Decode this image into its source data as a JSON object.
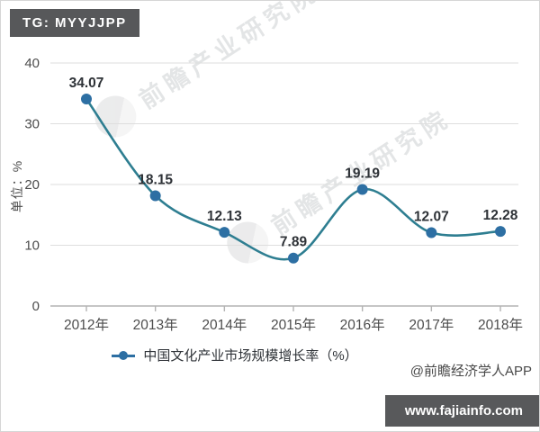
{
  "header": {
    "tag_badge": "TG: MYYJJPP"
  },
  "watermarks": [
    {
      "text": "前瞻产业研究院"
    },
    {
      "text": "前瞻产业研究院"
    }
  ],
  "chart_data": {
    "type": "line",
    "title": "",
    "categories": [
      "2012年",
      "2013年",
      "2014年",
      "2015年",
      "2016年",
      "2017年",
      "2018年"
    ],
    "series": [
      {
        "name": "中国文化产业市场规模增长率（%）",
        "values": [
          34.07,
          18.15,
          12.13,
          7.89,
          19.19,
          12.07,
          12.28
        ]
      }
    ],
    "xlabel": "",
    "ylabel": "单位：%",
    "ylim": [
      0,
      40
    ],
    "yticks": [
      0,
      10,
      20,
      30,
      40
    ],
    "grid": true,
    "legend_position": "bottom",
    "line_color": "#2e7e91",
    "marker_color": "#2d6fa3",
    "data_label_color": "#2e3237",
    "axis_color": "#b3b3b3",
    "grid_color": "#dedede",
    "tick_label_color": "#4d4d4d"
  },
  "footer": {
    "attribution": "@前瞻经济学人APP",
    "site_badge": "www.fajiainfo.com"
  }
}
